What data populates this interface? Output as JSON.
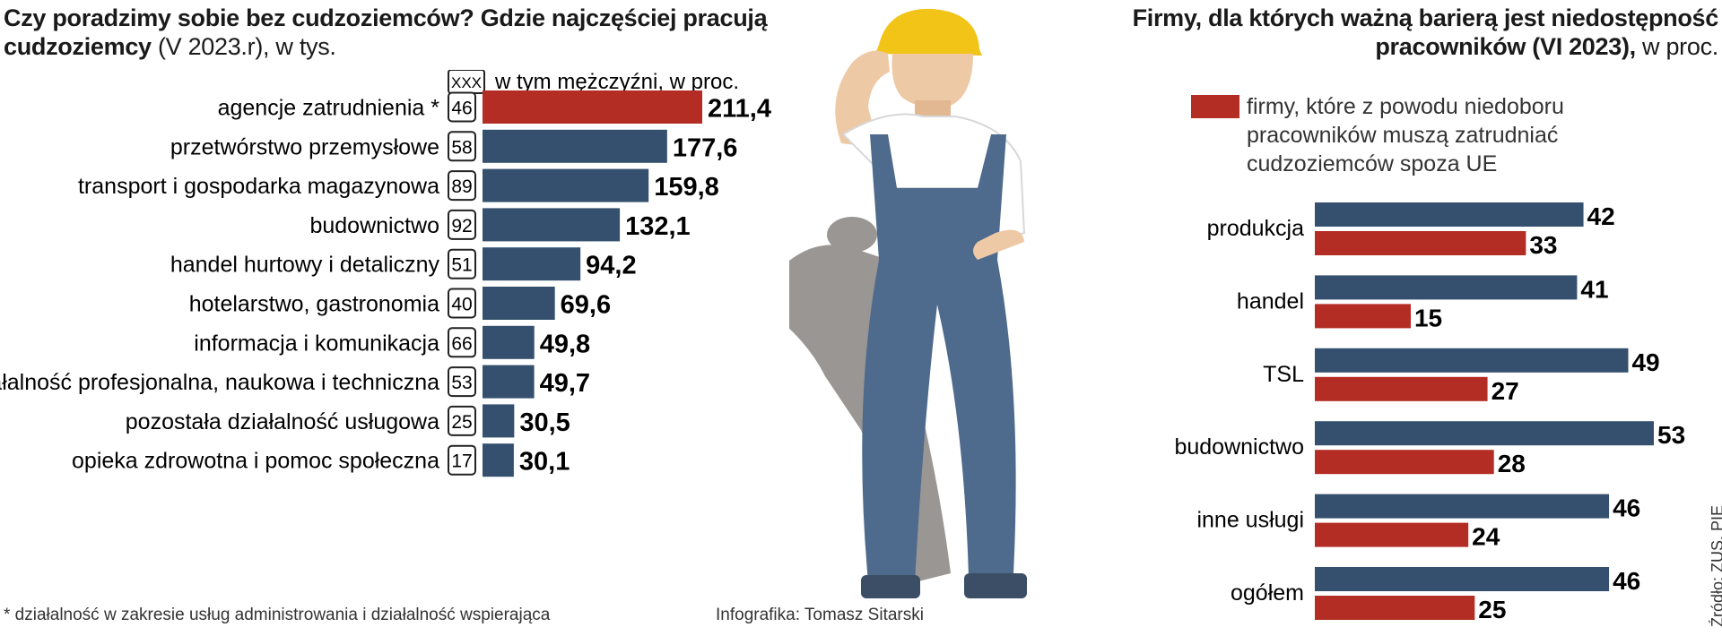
{
  "left": {
    "title_bold": "Czy poradzimy sobie bez cudzoziemców? Gdzie najczęściej pracują cudzoziemcy",
    "title_light": " (V 2023.r), w tys.",
    "legend_box_text": "XXX",
    "legend_text": "w tym mężczyźni, w proc.",
    "footnote": "* działalność w zakresie usług administrowania i działalność wspierająca"
  },
  "right": {
    "title_bold": "Firmy, dla których ważną barierą jest niedostępność pracowników (VI 2023),",
    "title_light": " w proc.",
    "legend_text_lines": [
      "firmy, które z powodu niedoboru",
      "pracowników muszą zatrudniać",
      "cudzoziemców spoza UE"
    ]
  },
  "credit": "Infografika: Tomasz Sitarski",
  "source": "Źródło: ZUS, PIE",
  "colors": {
    "navy": "#34506e",
    "red": "#b32d24",
    "shadow": "#9a9694",
    "overall_blue": "#4e6a8c"
  },
  "chart_data": [
    {
      "type": "bar",
      "orientation": "horizontal",
      "title": "Czy poradzimy sobie bez cudzoziemców? Gdzie najczęściej pracują cudzoziemcy (V 2023.r), w tys.",
      "categories": [
        "agencje zatrudnienia *",
        "przetwórstwo przemysłowe",
        "transport i gospodarka magazynowa",
        "budownictwo",
        "handel hurtowy i detaliczny",
        "hotelarstwo, gastronomia",
        "informacja i komunikacja",
        "działalność profesjonalna, naukowa i techniczna",
        "pozostała działalność usługowa",
        "opieka zdrowotna i pomoc społeczna"
      ],
      "values": [
        211.4,
        177.6,
        159.8,
        132.1,
        94.2,
        69.6,
        49.8,
        49.7,
        30.5,
        30.1
      ],
      "value_labels": [
        "211,4",
        "177,6",
        "159,8",
        "132,1",
        "94,2",
        "69,6",
        "49,8",
        "49,7",
        "30,5",
        "30,1"
      ],
      "men_percent": [
        46,
        58,
        89,
        92,
        51,
        40,
        66,
        53,
        25,
        17
      ],
      "highlight_index": 0,
      "xlim": [
        0,
        211.4
      ]
    },
    {
      "type": "bar",
      "orientation": "horizontal",
      "title": "Firmy, dla których ważną barierą jest niedostępność pracowników (VI 2023), w proc.",
      "categories": [
        "produkcja",
        "handel",
        "TSL",
        "budownictwo",
        "inne usługi",
        "ogółem"
      ],
      "series": [
        {
          "values": [
            42,
            41,
            49,
            53,
            46,
            46
          ]
        },
        {
          "name": "firmy, które z powodu niedoboru pracowników muszą zatrudniać cudzoziemców spoza UE",
          "values": [
            33,
            15,
            27,
            28,
            24,
            25
          ]
        }
      ],
      "xlim": [
        0,
        53
      ]
    }
  ]
}
